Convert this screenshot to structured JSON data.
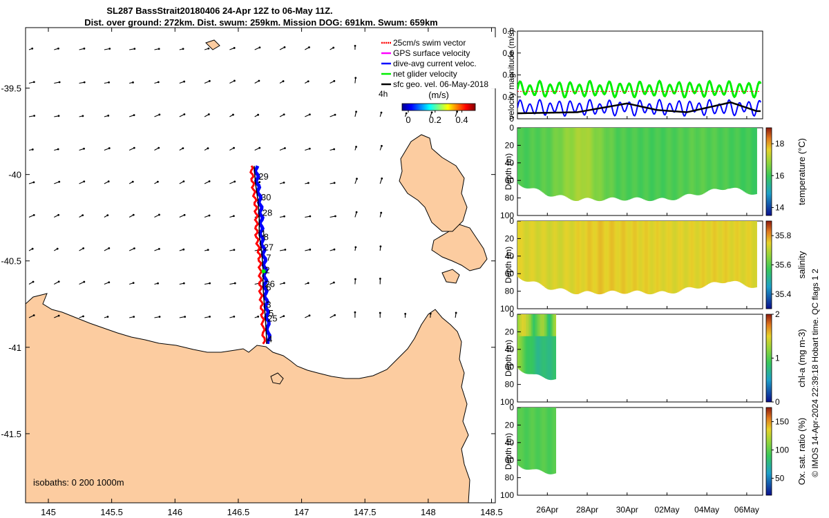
{
  "title": {
    "line1": "SL287 BassStrait20180406 24-Apr 12Z to 06-May 11Z.",
    "line2": "Dist. over ground: 272km. Dist. swum: 259km. Mission DOG: 691km. Swum: 659km"
  },
  "colors": {
    "land": "#fccca0",
    "track_red": "#ff0000",
    "track_blue": "#0000ff",
    "speed_green": "#00ee00",
    "geo_black": "#000000"
  },
  "map": {
    "xticks": [
      "145",
      "145.5",
      "146",
      "146.5",
      "147",
      "147.5",
      "148",
      "148.5"
    ],
    "yticks": [
      "-39.5",
      "-40",
      "-40.5",
      "-41",
      "-41.5"
    ],
    "isobaths_label": "isobaths: 0   200  1000m",
    "legend": [
      {
        "label": "25cm/s swim vector",
        "color": "#ff0000"
      },
      {
        "label": "GPS surface velocity",
        "color": "#ff00ff"
      },
      {
        "label": "dive-avg current veloc.",
        "color": "#0000ff"
      },
      {
        "label": "net glider velocity",
        "color": "#00ee00"
      },
      {
        "label": "sfc geo. vel. 06-May-2018",
        "color": "#000000"
      }
    ],
    "interval_label": "4h",
    "colorbar_label": "(m/s)",
    "colorbar_ticks": [
      "0",
      "0.2",
      "0.4"
    ],
    "day_labels": [
      {
        "text": "29",
        "lon": 146.66,
        "lat": -40.01
      },
      {
        "text": "30",
        "lon": 146.68,
        "lat": -40.13
      },
      {
        "text": "28",
        "lon": 146.69,
        "lat": -40.22
      },
      {
        "text": "1",
        "lon": 146.68,
        "lat": -40.34
      },
      {
        "text": "8",
        "lon": 146.7,
        "lat": -40.36
      },
      {
        "text": "27",
        "lon": 146.7,
        "lat": -40.42
      },
      {
        "text": "7",
        "lon": 146.72,
        "lat": -40.48
      },
      {
        "text": "2",
        "lon": 146.71,
        "lat": -40.55
      },
      {
        "text": "26",
        "lon": 146.71,
        "lat": -40.63
      },
      {
        "text": "6",
        "lon": 146.72,
        "lat": -40.65
      },
      {
        "text": "3",
        "lon": 146.72,
        "lat": -40.75
      },
      {
        "text": "5",
        "lon": 146.74,
        "lat": -40.8
      },
      {
        "text": "25",
        "lon": 146.73,
        "lat": -40.83
      },
      {
        "text": "4",
        "lon": 146.73,
        "lat": -40.95
      }
    ]
  },
  "chart_data": [
    {
      "type": "line",
      "title": "",
      "ylabel": "velocity magnitude (m/s)",
      "ylim": [
        0,
        0.8
      ],
      "yticks": [
        "0",
        "0.2",
        "0.4",
        "0.6",
        "0.8"
      ],
      "series": [
        {
          "name": "net glider velocity",
          "color": "#00ee00",
          "mean": 0.27,
          "amplitude": 0.055,
          "period_days": 0.5
        },
        {
          "name": "dive-avg current veloc.",
          "color": "#0000ff",
          "mean": 0.1,
          "amplitude": 0.055,
          "period_days": 0.5
        },
        {
          "name": "sfc geo. vel.",
          "color": "#000000",
          "points": [
            [
              0,
              0.05
            ],
            [
              3,
              0.06
            ],
            [
              5.5,
              0.14
            ],
            [
              7,
              0.08
            ],
            [
              8.5,
              0.06
            ],
            [
              10.7,
              0.15
            ],
            [
              12,
              0.07
            ]
          ]
        },
        {
          "name": "25cm/s swim vector",
          "color": "#ff0000",
          "constant": 0.25
        }
      ]
    },
    {
      "type": "heatmap",
      "ylabel": "Depth (m)",
      "colorbar_label": "temperature (°C)",
      "clim": [
        13.5,
        19
      ],
      "colorbar_ticks": [
        "14",
        "16",
        "18"
      ],
      "yticks": [
        "0",
        "20",
        "40",
        "60",
        "80",
        "100"
      ],
      "ylim": [
        0,
        100
      ],
      "data_days": [
        0,
        12
      ],
      "bottom_depth": [
        [
          0,
          64
        ],
        [
          1.5,
          76
        ],
        [
          3,
          82
        ],
        [
          5.5,
          81
        ],
        [
          7.5,
          82
        ],
        [
          9.5,
          73
        ],
        [
          10.5,
          68
        ],
        [
          12,
          76
        ]
      ],
      "value_profile": [
        [
          0,
          16.1
        ],
        [
          1.5,
          16.3
        ],
        [
          2.5,
          16.8
        ],
        [
          3.3,
          17.1
        ],
        [
          4.1,
          16.6
        ],
        [
          5,
          16.2
        ],
        [
          7,
          16.1
        ],
        [
          9,
          16.3
        ],
        [
          12,
          16
        ]
      ]
    },
    {
      "type": "heatmap",
      "ylabel": "Depth (m)",
      "colorbar_label": "salinity",
      "clim": [
        35.3,
        35.9
      ],
      "colorbar_ticks": [
        "35.4",
        "35.6",
        "35.8"
      ],
      "yticks": [
        "0",
        "20",
        "40",
        "60",
        "80",
        "100"
      ],
      "ylim": [
        0,
        100
      ],
      "data_days": [
        0,
        12
      ],
      "bottom_depth": [
        [
          0,
          64
        ],
        [
          1.5,
          76
        ],
        [
          3,
          82
        ],
        [
          5.5,
          81
        ],
        [
          7.5,
          82
        ],
        [
          9.5,
          73
        ],
        [
          10.5,
          68
        ],
        [
          12,
          76
        ]
      ],
      "value_profile": [
        [
          0,
          35.74
        ],
        [
          2,
          35.73
        ],
        [
          4,
          35.76
        ],
        [
          6,
          35.75
        ],
        [
          8,
          35.74
        ],
        [
          10,
          35.75
        ],
        [
          12,
          35.74
        ]
      ]
    },
    {
      "type": "heatmap",
      "ylabel": "Depth (m)",
      "colorbar_label": "chl-a (mg m-3)",
      "clim": [
        0,
        2
      ],
      "colorbar_ticks": [
        "0",
        "1",
        "2"
      ],
      "yticks": [
        "0",
        "20",
        "40",
        "60",
        "80",
        "100"
      ],
      "ylim": [
        0,
        100
      ],
      "data_days": [
        0,
        1.9
      ],
      "bottom_depth": [
        [
          0,
          62
        ],
        [
          0.8,
          70
        ],
        [
          1.9,
          74
        ]
      ],
      "value_profile": [
        [
          0,
          1.2
        ],
        [
          0.5,
          0.9
        ],
        [
          1,
          0.75
        ],
        [
          1.9,
          0.8
        ]
      ]
    },
    {
      "type": "heatmap",
      "ylabel": "Depth (m)",
      "colorbar_label": "Ox. sat. ratio (%)",
      "clim": [
        20,
        175
      ],
      "colorbar_ticks": [
        "50",
        "100",
        "150"
      ],
      "yticks": [
        "0",
        "20",
        "40",
        "60",
        "80",
        "100"
      ],
      "ylim": [
        0,
        100
      ],
      "data_days": [
        0,
        1.9
      ],
      "bottom_depth": [
        [
          0,
          66
        ],
        [
          0.8,
          72
        ],
        [
          1.9,
          75
        ]
      ],
      "value_profile": [
        [
          0,
          96
        ],
        [
          1,
          97
        ],
        [
          1.9,
          96
        ]
      ]
    }
  ],
  "time_axis": {
    "labels": [
      "26Apr",
      "28Apr",
      "30Apr",
      "02May",
      "04May",
      "06May"
    ]
  },
  "footer": "© IMOS 14-Apr-2024 22:39:18 Hobart time. QC flags 1  2"
}
